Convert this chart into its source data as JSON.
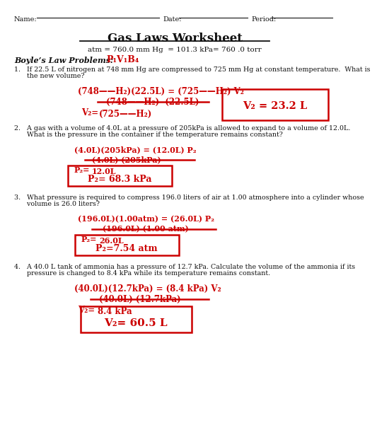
{
  "bg_color": "#ffffff",
  "red": "#cc0000",
  "black": "#111111",
  "title": "Gas Laws Worksheet",
  "subtitle": "atm = 760.0 mm Hg  = 101.3 kPa= 760 .0 torr",
  "name_label": "Name:",
  "date_label": "Date:",
  "period_label": "Period:",
  "boyles_label": "Boyle’s Law Problems:",
  "boyles_formula": "P₁V₁B₄",
  "q1_text1": "1.   If 22.5 L of nitrogen at 748 mm Hg are compressed to 725 mm Hg at constant temperature.  What is",
  "q1_text2": "      the new volume?",
  "q1_line1": "(748——H₂)(22.5L) = (725——H₂) V₂",
  "q1_line2": "(748——H₂)  (22.5L)",
  "q1_line3a": "V₂=",
  "q1_line3b": "(725——H₂)",
  "q1_ans": "V₂ = 23.2 L",
  "q2_text1": "2.   A gas with a volume of 4.0L at a pressure of 205kPa is allowed to expand to a volume of 12.0L.",
  "q2_text2": "      What is the pressure in the container if the temperature remains constant?",
  "q2_line1": "(4.0L)(205kPa) = (12.0L) P₂",
  "q2_line2": "(4.0L) (205kPa)",
  "q2_line3a": "P₂=",
  "q2_line3b": "12.0L",
  "q2_ans": "P₂= 68.3 kPa",
  "q3_text1": "3.   What pressure is required to compress 196.0 liters of air at 1.00 atmosphere into a cylinder whose",
  "q3_text2": "      volume is 26.0 liters?",
  "q3_line1": "(196.0L)(1.00atm) = (26.0L) P₂",
  "q3_line2": "(196.0L) (1.00 atm)",
  "q3_line3a": "P₂=",
  "q3_line3b": "26.0L",
  "q3_ans": "P₂=7.54 atm",
  "q4_text1": "4.   A 40.0 L tank of ammonia has a pressure of 12.7 kPa. Calculate the volume of the ammonia if its",
  "q4_text2": "      pressure is changed to 8.4 kPa while its temperature remains constant.",
  "q4_line1": "(40.0L)(12.7kPa) = (8.4 kPa) V₂",
  "q4_line2": "(40.0L) (12.7kPa)",
  "q4_line3a": "V₂=",
  "q4_line3b": "8.4 kPa",
  "q4_ans": "V₂= 60.5 L"
}
